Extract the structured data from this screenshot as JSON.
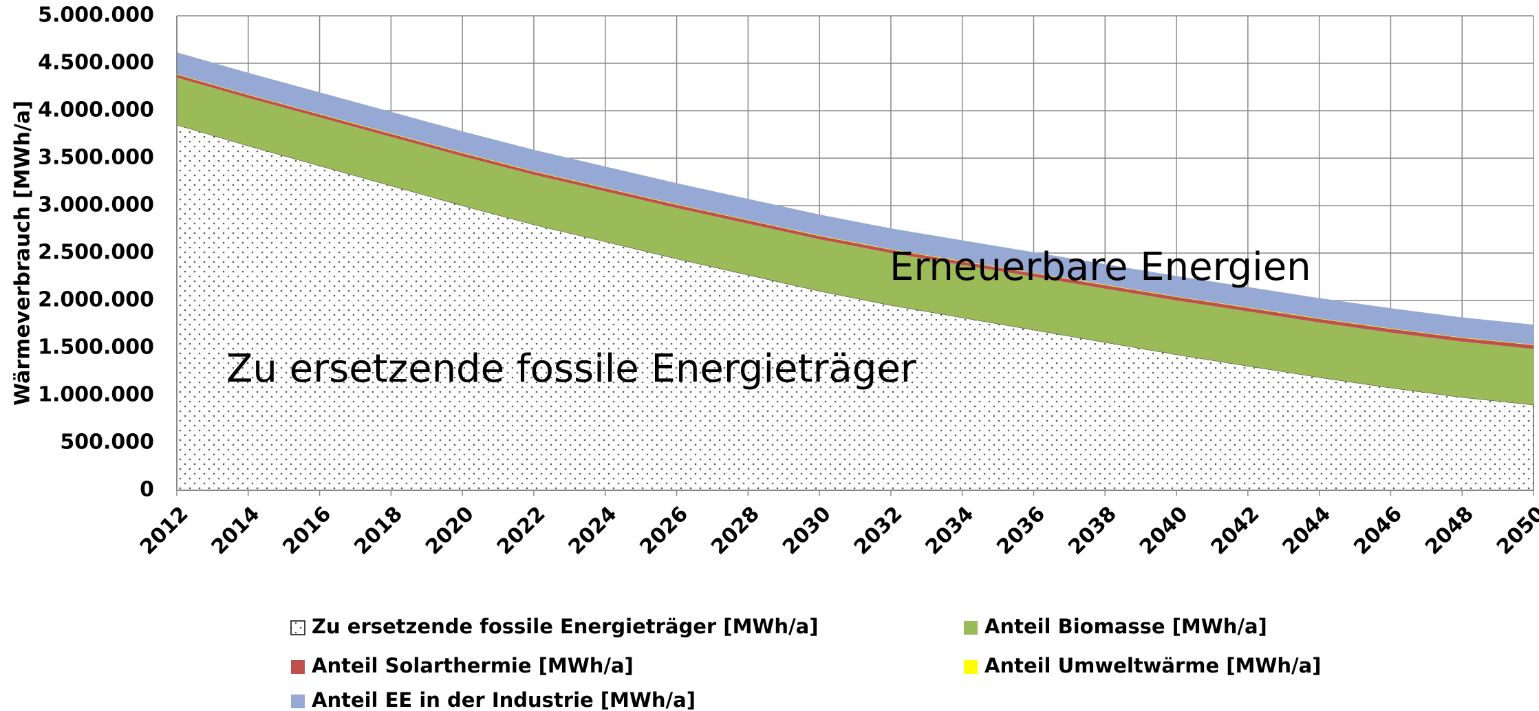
{
  "chart_data": {
    "type": "stacked_area",
    "y_label": "Wärmeverbrauch [MWh/a]",
    "x": [
      2012,
      2014,
      2016,
      2018,
      2020,
      2022,
      2024,
      2026,
      2028,
      2030,
      2032,
      2034,
      2036,
      2038,
      2040,
      2042,
      2044,
      2046,
      2048,
      2050
    ],
    "xlim": [
      2012,
      2050
    ],
    "xticks": [
      2012,
      2014,
      2016,
      2018,
      2020,
      2022,
      2024,
      2026,
      2028,
      2030,
      2032,
      2034,
      2036,
      2038,
      2040,
      2042,
      2044,
      2046,
      2048,
      2050
    ],
    "ylim": [
      0,
      5000000
    ],
    "yticks": [
      0,
      {
        "value": 500000,
        "label": "500.000"
      },
      {
        "value": 1000000,
        "label": "1.000.000"
      },
      {
        "value": 1500000,
        "label": "1.500.000"
      },
      {
        "value": 2000000,
        "label": "2.000.000"
      },
      {
        "value": 2500000,
        "label": "2.500.000"
      },
      {
        "value": 3000000,
        "label": "3.000.000"
      },
      {
        "value": 3500000,
        "label": "3.500.000"
      },
      {
        "value": 4000000,
        "label": "4.000.000"
      },
      {
        "value": 4500000,
        "label": "4.500.000"
      },
      {
        "value": 5000000,
        "label": "5.000.000"
      }
    ],
    "grid": true,
    "series": [
      {
        "name": "Zu ersetzende fossile Energieträger [MWh/a]",
        "color": "pattern-dots",
        "values": [
          3850000,
          3630000,
          3420000,
          3210000,
          3000000,
          2800000,
          2620000,
          2440000,
          2270000,
          2100000,
          1950000,
          1820000,
          1690000,
          1560000,
          1430000,
          1310000,
          1190000,
          1080000,
          980000,
          900000
        ]
      },
      {
        "name": "Anteil Biomasse [MWh/a]",
        "color": "#9bbb59",
        "values": [
          500000,
          505000,
          510000,
          515000,
          520000,
          525000,
          530000,
          535000,
          540000,
          545000,
          550000,
          555000,
          560000,
          565000,
          570000,
          575000,
          578000,
          582000,
          586000,
          590000
        ]
      },
      {
        "name": "Anteil Solarthermie [MWh/a]",
        "color": "#c0504d",
        "values": [
          30000,
          30500,
          31000,
          31500,
          32000,
          32500,
          33000,
          33500,
          34000,
          34500,
          35000,
          35500,
          36000,
          36500,
          37000,
          37500,
          38000,
          38500,
          39000,
          39500
        ]
      },
      {
        "name": "Anteil Umweltwärme [MWh/a]",
        "color": "#ffff00",
        "values": [
          5000,
          5000,
          5000,
          5000,
          5000,
          5000,
          5000,
          5000,
          5000,
          5000,
          5000,
          5000,
          5000,
          5000,
          5000,
          5000,
          5000,
          5000,
          5000,
          5000
        ]
      },
      {
        "name": "Anteil EE in der Industrie [MWh/a]",
        "color": "#95a9d4",
        "values": [
          230000,
          229000,
          228000,
          227000,
          226000,
          225000,
          224000,
          223000,
          222000,
          221000,
          220000,
          219000,
          218000,
          217000,
          216000,
          215000,
          214000,
          213000,
          212000,
          211000
        ]
      }
    ],
    "annotations": [
      "Erneuerbare Energien",
      "Zu ersetzende fossile Energieträger"
    ]
  }
}
